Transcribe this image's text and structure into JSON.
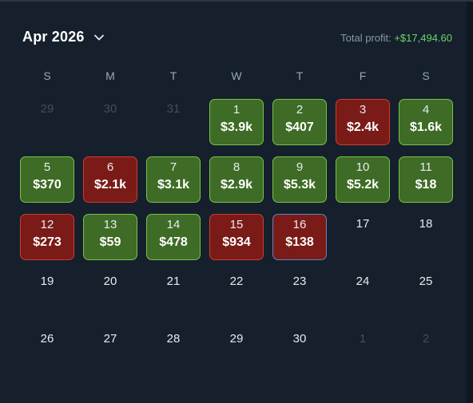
{
  "calendar": {
    "month_label": "Apr 2026",
    "total_label": "Total profit:",
    "total_value": "+$17,494.60",
    "weekdays": [
      "S",
      "M",
      "T",
      "W",
      "T",
      "F",
      "S"
    ],
    "days": [
      {
        "day": "29",
        "amount": "",
        "status": "muted"
      },
      {
        "day": "30",
        "amount": "",
        "status": "muted"
      },
      {
        "day": "31",
        "amount": "",
        "status": "muted"
      },
      {
        "day": "1",
        "amount": "$3.9k",
        "status": "win"
      },
      {
        "day": "2",
        "amount": "$407",
        "status": "win"
      },
      {
        "day": "3",
        "amount": "$2.4k",
        "status": "loss"
      },
      {
        "day": "4",
        "amount": "$1.6k",
        "status": "win"
      },
      {
        "day": "5",
        "amount": "$370",
        "status": "win"
      },
      {
        "day": "6",
        "amount": "$2.1k",
        "status": "loss"
      },
      {
        "day": "7",
        "amount": "$3.1k",
        "status": "win"
      },
      {
        "day": "8",
        "amount": "$2.9k",
        "status": "win"
      },
      {
        "day": "9",
        "amount": "$5.3k",
        "status": "win"
      },
      {
        "day": "10",
        "amount": "$5.2k",
        "status": "win"
      },
      {
        "day": "11",
        "amount": "$18",
        "status": "win"
      },
      {
        "day": "12",
        "amount": "$273",
        "status": "loss"
      },
      {
        "day": "13",
        "amount": "$59",
        "status": "win"
      },
      {
        "day": "14",
        "amount": "$478",
        "status": "win"
      },
      {
        "day": "15",
        "amount": "$934",
        "status": "loss"
      },
      {
        "day": "16",
        "amount": "$138",
        "status": "today"
      },
      {
        "day": "17",
        "amount": "",
        "status": "plain"
      },
      {
        "day": "18",
        "amount": "",
        "status": "plain"
      },
      {
        "day": "19",
        "amount": "",
        "status": "plain"
      },
      {
        "day": "20",
        "amount": "",
        "status": "plain"
      },
      {
        "day": "21",
        "amount": "",
        "status": "plain"
      },
      {
        "day": "22",
        "amount": "",
        "status": "plain"
      },
      {
        "day": "23",
        "amount": "",
        "status": "plain"
      },
      {
        "day": "24",
        "amount": "",
        "status": "plain"
      },
      {
        "day": "25",
        "amount": "",
        "status": "plain"
      },
      {
        "day": "26",
        "amount": "",
        "status": "plain"
      },
      {
        "day": "27",
        "amount": "",
        "status": "plain"
      },
      {
        "day": "28",
        "amount": "",
        "status": "plain"
      },
      {
        "day": "29",
        "amount": "",
        "status": "plain"
      },
      {
        "day": "30",
        "amount": "",
        "status": "plain"
      },
      {
        "day": "1",
        "amount": "",
        "status": "muted"
      },
      {
        "day": "2",
        "amount": "",
        "status": "muted"
      }
    ]
  },
  "colors": {
    "background": "#15202c",
    "win": "#3e6b25",
    "loss": "#7a1b17",
    "profit_text": "#6ed36a"
  },
  "icons": {
    "month_dropdown": "chevron-down-icon"
  }
}
